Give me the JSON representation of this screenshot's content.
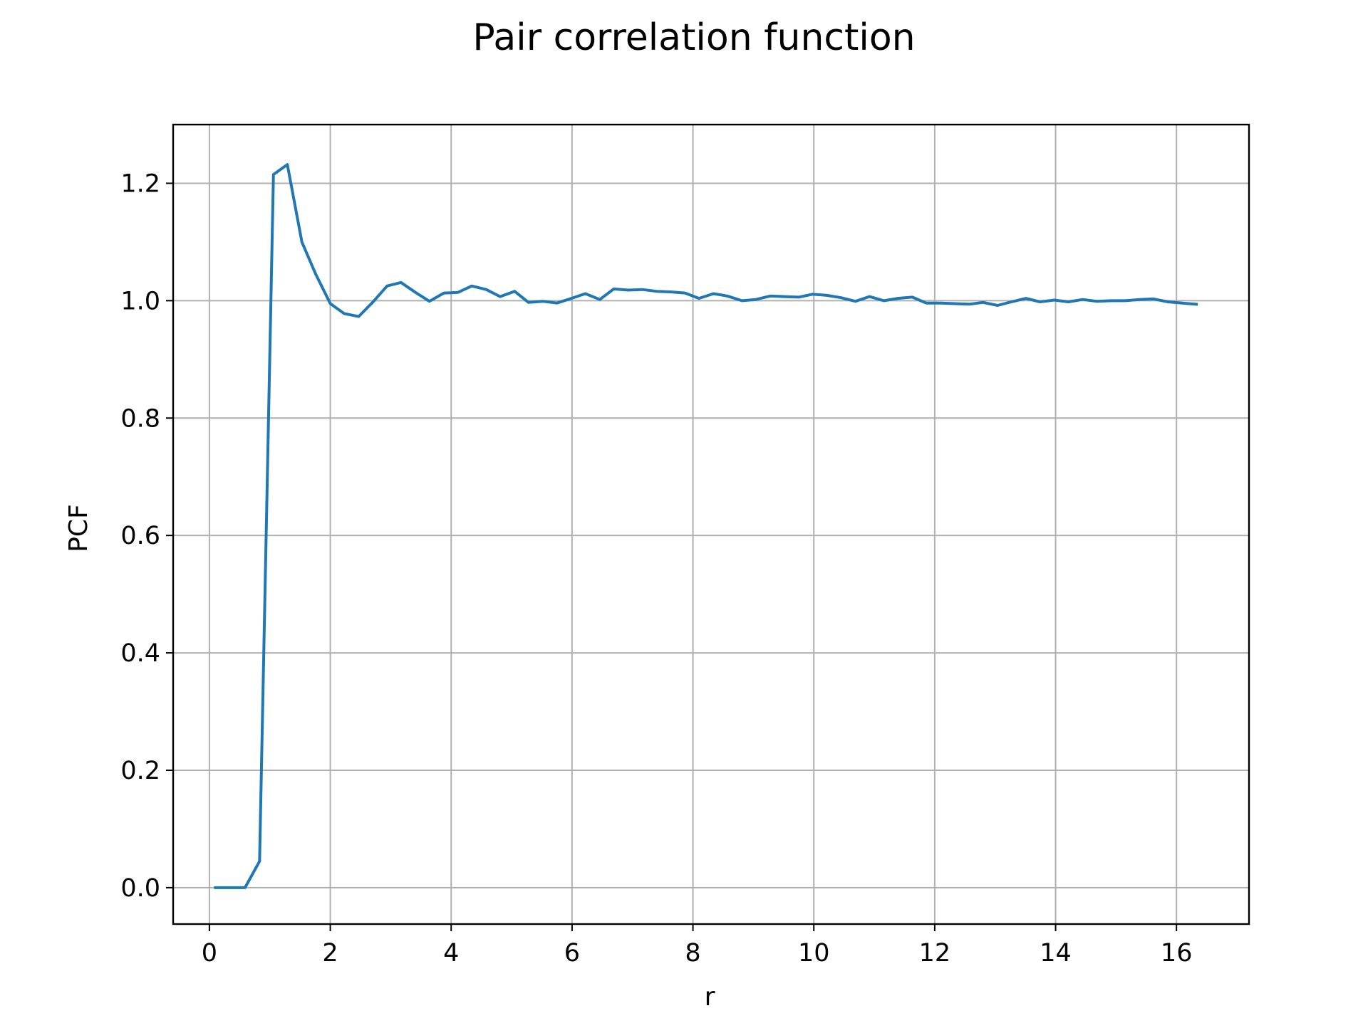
{
  "chart_data": {
    "type": "line",
    "title": "Pair correlation function",
    "xlabel": "r",
    "ylabel": "PCF",
    "xlim": [
      -0.6,
      17.2
    ],
    "ylim": [
      -0.062,
      1.3
    ],
    "xticks": [
      0,
      2,
      4,
      6,
      8,
      10,
      12,
      14,
      16
    ],
    "yticks": [
      0.0,
      0.2,
      0.4,
      0.6,
      0.8,
      1.0,
      1.2
    ],
    "xtick_labels": [
      "0",
      "2",
      "4",
      "6",
      "8",
      "10",
      "12",
      "14",
      "16"
    ],
    "ytick_labels": [
      "0.0",
      "0.2",
      "0.4",
      "0.6",
      "0.8",
      "1.0",
      "1.2"
    ],
    "grid": true,
    "series": [
      {
        "color": "#1f77b4",
        "x": [
          0.1,
          0.35,
          0.59,
          0.83,
          1.06,
          1.29,
          1.53,
          1.76,
          2.0,
          2.23,
          2.47,
          2.7,
          2.94,
          3.17,
          3.41,
          3.64,
          3.88,
          4.11,
          4.34,
          4.58,
          4.81,
          5.05,
          5.28,
          5.52,
          5.75,
          5.99,
          6.22,
          6.46,
          6.69,
          6.93,
          7.16,
          7.4,
          7.63,
          7.87,
          8.1,
          8.34,
          8.57,
          8.81,
          9.04,
          9.28,
          9.51,
          9.75,
          9.98,
          10.22,
          10.45,
          10.69,
          10.92,
          11.16,
          11.39,
          11.63,
          11.86,
          12.1,
          12.33,
          12.57,
          12.8,
          13.04,
          13.27,
          13.51,
          13.74,
          13.98,
          14.21,
          14.45,
          14.68,
          14.92,
          15.15,
          15.39,
          15.62,
          15.86,
          16.09,
          16.33
        ],
        "y": [
          0.0,
          0.0,
          0.0,
          0.045,
          1.215,
          1.232,
          1.1,
          1.045,
          0.995,
          0.978,
          0.973,
          0.997,
          1.025,
          1.031,
          1.014,
          0.999,
          1.013,
          1.014,
          1.025,
          1.019,
          1.007,
          1.016,
          0.997,
          0.999,
          0.996,
          1.004,
          1.012,
          1.002,
          1.02,
          1.018,
          1.019,
          1.016,
          1.015,
          1.013,
          1.004,
          1.012,
          1.008,
          1.0,
          1.002,
          1.008,
          1.007,
          1.006,
          1.011,
          1.009,
          1.005,
          0.999,
          1.007,
          1.0,
          1.004,
          1.006,
          0.996,
          0.996,
          0.995,
          0.994,
          0.997,
          0.992,
          0.998,
          1.004,
          0.998,
          1.001,
          0.998,
          1.002,
          0.999,
          1.0,
          1.0,
          1.002,
          1.003,
          0.998,
          0.996,
          0.994
        ]
      }
    ]
  }
}
